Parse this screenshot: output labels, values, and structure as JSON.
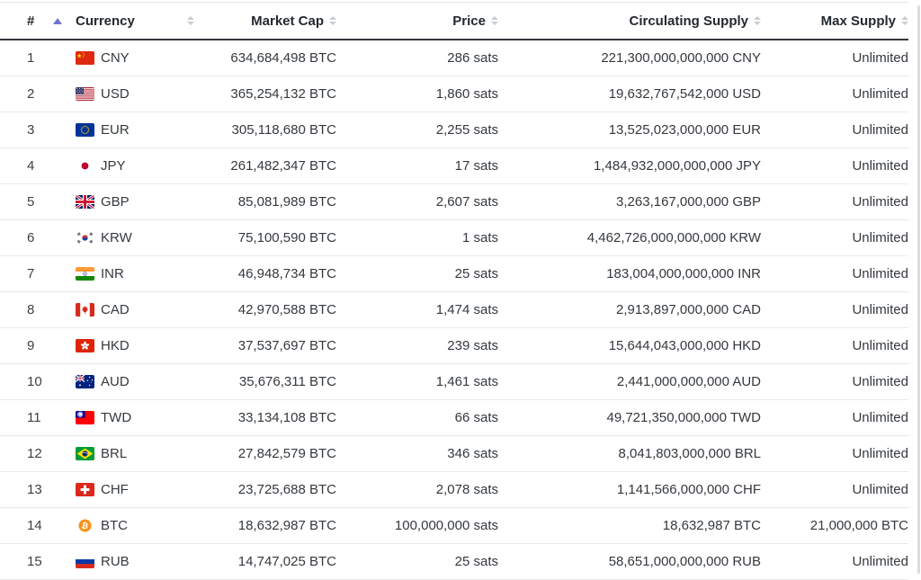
{
  "page": {
    "background": "#ffffff",
    "accent_sort_color": "#6f72ce",
    "inactive_sort_color": "#c9cdd2",
    "separator_color": "#e9e9e9",
    "header_rule_color": "#32373c"
  },
  "table": {
    "headers": [
      {
        "label": "#",
        "sort": "ascending",
        "align": "left"
      },
      {
        "label": "Currency",
        "sort": "none",
        "align": "left"
      },
      {
        "label": "Market Cap",
        "sort": "none",
        "align": "right"
      },
      {
        "label": "Price",
        "sort": "none",
        "align": "right"
      },
      {
        "label": "Circulating Supply",
        "sort": "none",
        "align": "right"
      },
      {
        "label": "Max Supply",
        "sort": "none",
        "align": "right"
      }
    ],
    "rows": [
      {
        "rank": "1",
        "code": "CNY",
        "flag": "cn",
        "market_cap": "634,684,498 BTC",
        "price": "286 sats",
        "circulating_supply": "221,300,000,000,000 CNY",
        "max_supply": "Unlimited"
      },
      {
        "rank": "2",
        "code": "USD",
        "flag": "us",
        "market_cap": "365,254,132 BTC",
        "price": "1,860 sats",
        "circulating_supply": "19,632,767,542,000 USD",
        "max_supply": "Unlimited"
      },
      {
        "rank": "3",
        "code": "EUR",
        "flag": "eu",
        "market_cap": "305,118,680 BTC",
        "price": "2,255 sats",
        "circulating_supply": "13,525,023,000,000 EUR",
        "max_supply": "Unlimited"
      },
      {
        "rank": "4",
        "code": "JPY",
        "flag": "jp",
        "market_cap": "261,482,347 BTC",
        "price": "17 sats",
        "circulating_supply": "1,484,932,000,000,000 JPY",
        "max_supply": "Unlimited"
      },
      {
        "rank": "5",
        "code": "GBP",
        "flag": "gb",
        "market_cap": "85,081,989 BTC",
        "price": "2,607 sats",
        "circulating_supply": "3,263,167,000,000 GBP",
        "max_supply": "Unlimited"
      },
      {
        "rank": "6",
        "code": "KRW",
        "flag": "kr",
        "market_cap": "75,100,590 BTC",
        "price": "1 sats",
        "circulating_supply": "4,462,726,000,000,000 KRW",
        "max_supply": "Unlimited"
      },
      {
        "rank": "7",
        "code": "INR",
        "flag": "in",
        "market_cap": "46,948,734 BTC",
        "price": "25 sats",
        "circulating_supply": "183,004,000,000,000 INR",
        "max_supply": "Unlimited"
      },
      {
        "rank": "8",
        "code": "CAD",
        "flag": "ca",
        "market_cap": "42,970,588 BTC",
        "price": "1,474 sats",
        "circulating_supply": "2,913,897,000,000 CAD",
        "max_supply": "Unlimited"
      },
      {
        "rank": "9",
        "code": "HKD",
        "flag": "hk",
        "market_cap": "37,537,697 BTC",
        "price": "239 sats",
        "circulating_supply": "15,644,043,000,000 HKD",
        "max_supply": "Unlimited"
      },
      {
        "rank": "10",
        "code": "AUD",
        "flag": "au",
        "market_cap": "35,676,311 BTC",
        "price": "1,461 sats",
        "circulating_supply": "2,441,000,000,000 AUD",
        "max_supply": "Unlimited"
      },
      {
        "rank": "11",
        "code": "TWD",
        "flag": "tw",
        "market_cap": "33,134,108 BTC",
        "price": "66 sats",
        "circulating_supply": "49,721,350,000,000 TWD",
        "max_supply": "Unlimited"
      },
      {
        "rank": "12",
        "code": "BRL",
        "flag": "br",
        "market_cap": "27,842,579 BTC",
        "price": "346 sats",
        "circulating_supply": "8,041,803,000,000 BRL",
        "max_supply": "Unlimited"
      },
      {
        "rank": "13",
        "code": "CHF",
        "flag": "ch",
        "market_cap": "23,725,688 BTC",
        "price": "2,078 sats",
        "circulating_supply": "1,141,566,000,000 CHF",
        "max_supply": "Unlimited"
      },
      {
        "rank": "14",
        "code": "BTC",
        "flag": "btc",
        "market_cap": "18,632,987 BTC",
        "price": "100,000,000 sats",
        "circulating_supply": "18,632,987 BTC",
        "max_supply": "21,000,000 BTC"
      },
      {
        "rank": "15",
        "code": "RUB",
        "flag": "ru",
        "market_cap": "14,747,025 BTC",
        "price": "25 sats",
        "circulating_supply": "58,651,000,000,000 RUB",
        "max_supply": "Unlimited"
      }
    ]
  }
}
